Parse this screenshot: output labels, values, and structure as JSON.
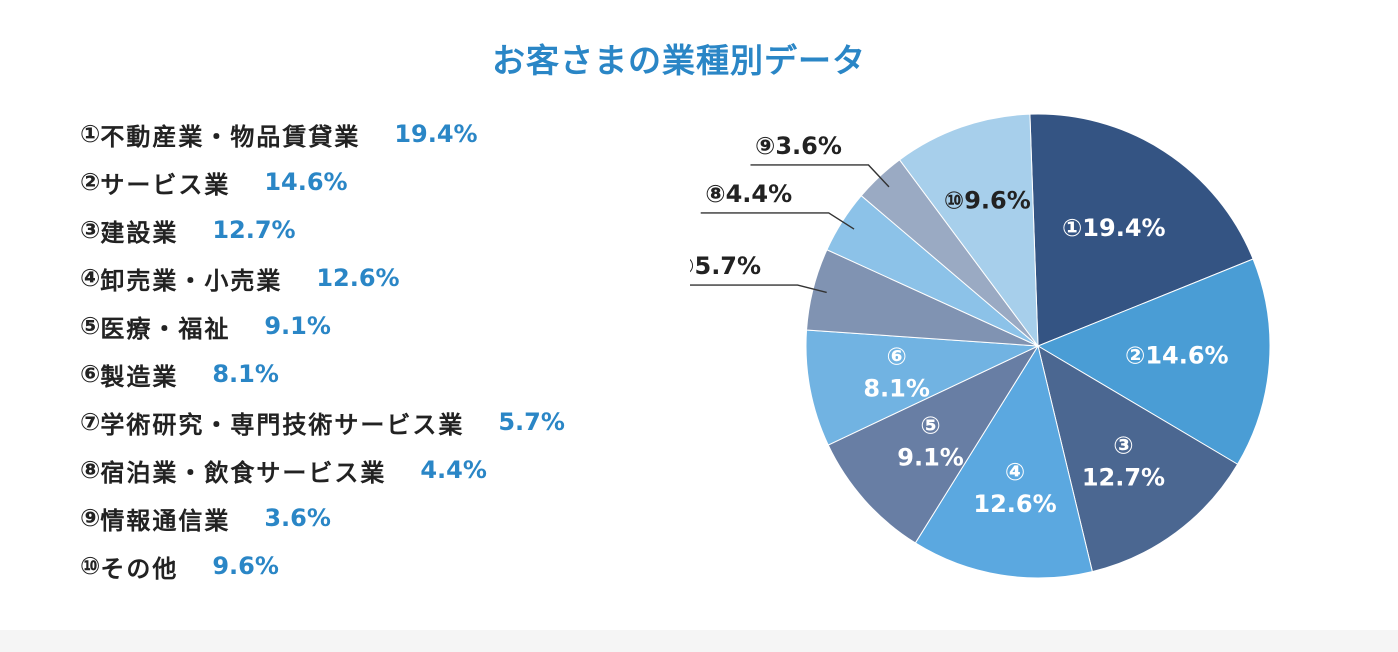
{
  "title": "お客さまの業種別データ",
  "chart_data": {
    "type": "pie",
    "slices": [
      {
        "num": "①",
        "name": "不動産業・物品賃貸業",
        "value": 19.4,
        "label": "19.4%",
        "color": "#345483"
      },
      {
        "num": "②",
        "name": "サービス業",
        "value": 14.6,
        "label": "14.6%",
        "color": "#4a9dd5"
      },
      {
        "num": "③",
        "name": "建設業",
        "value": 12.7,
        "label": "12.7%",
        "color": "#4b6791"
      },
      {
        "num": "④",
        "name": "卸売業・小売業",
        "value": 12.6,
        "label": "12.6%",
        "color": "#5ba8e0"
      },
      {
        "num": "⑤",
        "name": "医療・福祉",
        "value": 9.1,
        "label": "9.1%",
        "color": "#687ea4"
      },
      {
        "num": "⑥",
        "name": "製造業",
        "value": 8.1,
        "label": "8.1%",
        "color": "#71b3e2"
      },
      {
        "num": "⑦",
        "name": "学術研究・専門技術サービス業",
        "value": 5.7,
        "label": "5.7%",
        "color": "#8093b2"
      },
      {
        "num": "⑧",
        "name": "宿泊業・飲食サービス業",
        "value": 4.4,
        "label": "4.4%",
        "color": "#8cc2e8"
      },
      {
        "num": "⑨",
        "name": "情報通信業",
        "value": 3.6,
        "label": "3.6%",
        "color": "#9aaac3"
      },
      {
        "num": "⑩",
        "name": "その他",
        "value": 9.6,
        "label": "9.6%",
        "color": "#a7cfeb"
      }
    ]
  }
}
